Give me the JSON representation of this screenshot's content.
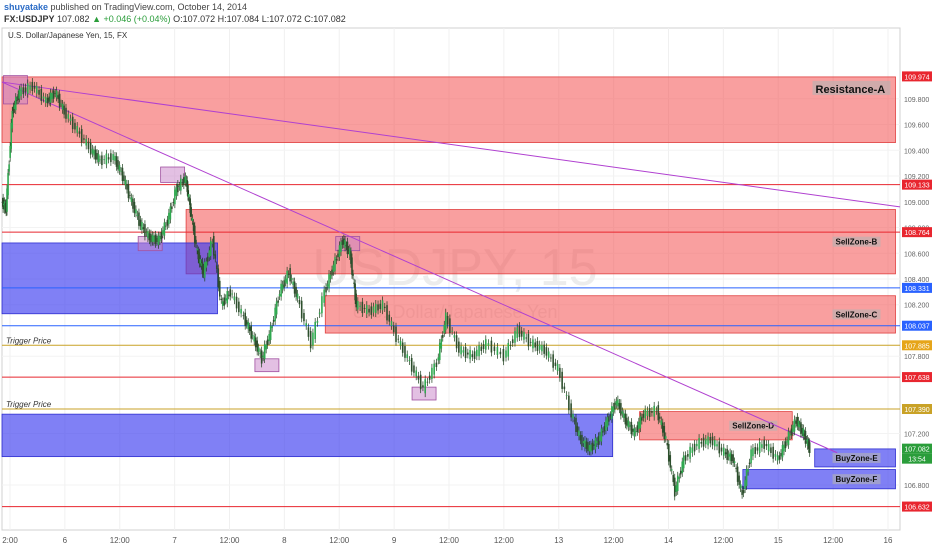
{
  "header": {
    "author": "shuyatake",
    "published": "published on TradingView.com, October 14, 2014",
    "symbol": "FX:USDJPY",
    "last": "107.082",
    "change": "▲ +0.046 (+0.04%)",
    "open": "O:107.072",
    "high": "H:107.084",
    "low": "L:107.072",
    "close": "C:107.082"
  },
  "chart_data": {
    "type": "candlestick",
    "title": "U.S. Dollar/Japanese Yen, 15, FX",
    "watermark_symbol": "USDJPY, 15",
    "watermark_name": "U.S. Dollar/Japanese Yen",
    "x_ticks": [
      "2:00",
      "6",
      "12:00",
      "7",
      "12:00",
      "8",
      "12:00",
      "9",
      "12:00",
      "12:00",
      "13",
      "12:00",
      "14",
      "12:00",
      "15",
      "12:00",
      "16"
    ],
    "y_ticks": [
      "109.800",
      "109.600",
      "109.400",
      "109.200",
      "109.000",
      "108.800",
      "108.600",
      "108.400",
      "108.200",
      "107.800",
      "107.200",
      "106.800"
    ],
    "ylim": [
      106.45,
      110.35
    ],
    "price_labels": [
      {
        "value": "109.974",
        "color": "#e8262f"
      },
      {
        "value": "109.133",
        "color": "#e8262f"
      },
      {
        "value": "108.764",
        "color": "#e8262f"
      },
      {
        "value": "108.331",
        "color": "#2962ff"
      },
      {
        "value": "108.037",
        "color": "#2962ff"
      },
      {
        "value": "107.885",
        "color": "#e6a519"
      },
      {
        "value": "107.638",
        "color": "#e8262f"
      },
      {
        "value": "107.390",
        "color": "#c9a227"
      },
      {
        "value": "107.082",
        "color": "#2a9d3a"
      },
      {
        "value": "13:54",
        "color": "#2a9d3a"
      },
      {
        "value": "106.632",
        "color": "#e8262f"
      }
    ],
    "zones": [
      {
        "label": "Resistance-A",
        "type": "sell",
        "top": 109.97,
        "bottom": 109.46,
        "x_start": 0.0,
        "x_end": 0.995
      },
      {
        "label": "SellZone-B",
        "type": "sell",
        "top": 108.94,
        "bottom": 108.44,
        "x_start": 0.205,
        "x_end": 0.995
      },
      {
        "label": "SellZone-C",
        "type": "sell",
        "top": 108.27,
        "bottom": 107.98,
        "x_start": 0.36,
        "x_end": 0.995
      },
      {
        "label": "SellZone-D",
        "type": "sell",
        "top": 107.37,
        "bottom": 107.15,
        "x_start": 0.71,
        "x_end": 0.88
      },
      {
        "label": "",
        "type": "buy",
        "top": 108.68,
        "bottom": 108.13,
        "x_start": 0.0,
        "x_end": 0.24
      },
      {
        "label": "",
        "type": "buy",
        "top": 107.35,
        "bottom": 107.02,
        "x_start": 0.0,
        "x_end": 0.68
      },
      {
        "label": "BuyZone-E",
        "type": "buy",
        "top": 107.08,
        "bottom": 106.94,
        "x_start": 0.905,
        "x_end": 0.995
      },
      {
        "label": "BuyZone-F",
        "type": "buy",
        "top": 106.92,
        "bottom": 106.77,
        "x_start": 0.825,
        "x_end": 0.995
      }
    ],
    "horizontal_lines": [
      {
        "label": "",
        "value": 109.133,
        "color": "#e8262f"
      },
      {
        "label": "",
        "value": 108.764,
        "color": "#e8262f"
      },
      {
        "label": "",
        "value": 108.331,
        "color": "#2962ff"
      },
      {
        "label": "",
        "value": 108.037,
        "color": "#2962ff"
      },
      {
        "label": "Trigger Price",
        "value": 107.885,
        "color": "#c9a227"
      },
      {
        "label": "",
        "value": 107.638,
        "color": "#e8262f"
      },
      {
        "label": "Trigger Price",
        "value": 107.39,
        "color": "#c9a227"
      },
      {
        "label": "",
        "value": 106.632,
        "color": "#e8262f"
      }
    ],
    "trendlines": [
      {
        "x1": 0.0,
        "y1": 109.93,
        "x2": 1.0,
        "y2": 108.96
      },
      {
        "x1": 0.0,
        "y1": 109.93,
        "x2": 0.93,
        "y2": 107.05
      }
    ],
    "marker_boxes": [
      {
        "x": 0.015,
        "top": 109.98,
        "bottom": 109.76
      },
      {
        "x": 0.19,
        "top": 109.27,
        "bottom": 109.15
      },
      {
        "x": 0.165,
        "top": 108.73,
        "bottom": 108.62
      },
      {
        "x": 0.385,
        "top": 108.73,
        "bottom": 108.62
      },
      {
        "x": 0.295,
        "top": 107.78,
        "bottom": 107.68
      },
      {
        "x": 0.47,
        "top": 107.56,
        "bottom": 107.46
      }
    ],
    "price_path": [
      [
        0.0,
        109.0
      ],
      [
        0.005,
        108.95
      ],
      [
        0.012,
        109.7
      ],
      [
        0.02,
        109.85
      ],
      [
        0.035,
        109.9
      ],
      [
        0.05,
        109.78
      ],
      [
        0.06,
        109.85
      ],
      [
        0.07,
        109.7
      ],
      [
        0.085,
        109.55
      ],
      [
        0.1,
        109.4
      ],
      [
        0.11,
        109.32
      ],
      [
        0.125,
        109.35
      ],
      [
        0.135,
        109.2
      ],
      [
        0.145,
        109.0
      ],
      [
        0.155,
        108.82
      ],
      [
        0.165,
        108.72
      ],
      [
        0.175,
        108.7
      ],
      [
        0.185,
        108.85
      ],
      [
        0.195,
        109.1
      ],
      [
        0.205,
        109.18
      ],
      [
        0.21,
        108.95
      ],
      [
        0.218,
        108.6
      ],
      [
        0.225,
        108.45
      ],
      [
        0.235,
        108.7
      ],
      [
        0.245,
        108.2
      ],
      [
        0.255,
        108.3
      ],
      [
        0.27,
        108.1
      ],
      [
        0.28,
        107.95
      ],
      [
        0.29,
        107.78
      ],
      [
        0.3,
        108.0
      ],
      [
        0.31,
        108.3
      ],
      [
        0.32,
        108.45
      ],
      [
        0.33,
        108.25
      ],
      [
        0.345,
        107.9
      ],
      [
        0.36,
        108.3
      ],
      [
        0.37,
        108.5
      ],
      [
        0.38,
        108.7
      ],
      [
        0.388,
        108.6
      ],
      [
        0.395,
        108.2
      ],
      [
        0.41,
        108.15
      ],
      [
        0.425,
        108.2
      ],
      [
        0.44,
        107.95
      ],
      [
        0.455,
        107.75
      ],
      [
        0.47,
        107.55
      ],
      [
        0.485,
        107.75
      ],
      [
        0.495,
        108.1
      ],
      [
        0.51,
        107.85
      ],
      [
        0.525,
        107.8
      ],
      [
        0.54,
        107.9
      ],
      [
        0.56,
        107.8
      ],
      [
        0.575,
        108.0
      ],
      [
        0.59,
        107.9
      ],
      [
        0.605,
        107.85
      ],
      [
        0.62,
        107.7
      ],
      [
        0.635,
        107.35
      ],
      [
        0.645,
        107.15
      ],
      [
        0.655,
        107.08
      ],
      [
        0.665,
        107.15
      ],
      [
        0.675,
        107.3
      ],
      [
        0.685,
        107.45
      ],
      [
        0.695,
        107.3
      ],
      [
        0.705,
        107.2
      ],
      [
        0.715,
        107.35
      ],
      [
        0.73,
        107.38
      ],
      [
        0.74,
        107.15
      ],
      [
        0.75,
        106.75
      ],
      [
        0.76,
        107.0
      ],
      [
        0.775,
        107.12
      ],
      [
        0.79,
        107.15
      ],
      [
        0.805,
        107.05
      ],
      [
        0.815,
        107.0
      ],
      [
        0.825,
        106.72
      ],
      [
        0.835,
        107.05
      ],
      [
        0.85,
        107.12
      ],
      [
        0.865,
        107.0
      ],
      [
        0.875,
        107.15
      ],
      [
        0.885,
        107.3
      ],
      [
        0.893,
        107.2
      ],
      [
        0.9,
        107.08
      ]
    ]
  }
}
